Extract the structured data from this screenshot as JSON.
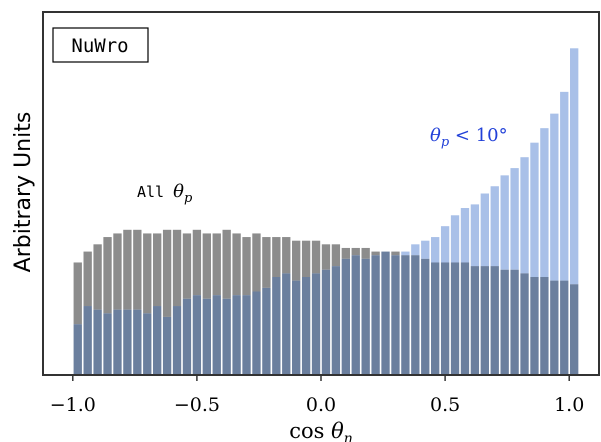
{
  "chart_data": {
    "type": "bar",
    "title": "",
    "xlabel": "cos θ_n",
    "ylabel": "Arbitrary Units",
    "xlim": [
      -1.12,
      1.12
    ],
    "ylim": [
      0,
      1.0
    ],
    "x_ticks": [
      -1.0,
      -0.5,
      0.0,
      0.5,
      1.0
    ],
    "x_tick_labels": [
      "−1.0",
      "−0.5",
      "0.0",
      "0.5",
      "1.0"
    ],
    "legend_box": "NuWro",
    "bin_edges_start": -1.0,
    "bin_width": 0.04,
    "series": [
      {
        "name": "All θ_p",
        "color": "#8c8c8c",
        "values": [
          0.31,
          0.34,
          0.36,
          0.38,
          0.39,
          0.4,
          0.4,
          0.39,
          0.39,
          0.4,
          0.4,
          0.39,
          0.4,
          0.39,
          0.39,
          0.4,
          0.39,
          0.38,
          0.39,
          0.38,
          0.38,
          0.38,
          0.37,
          0.37,
          0.37,
          0.36,
          0.36,
          0.35,
          0.35,
          0.35,
          0.34,
          0.34,
          0.34,
          0.33,
          0.33,
          0.32,
          0.31,
          0.31,
          0.31,
          0.31,
          0.3,
          0.3,
          0.3,
          0.29,
          0.29,
          0.28,
          0.27,
          0.27,
          0.26,
          0.26,
          0.25
        ]
      },
      {
        "name": "θ_p < 10°",
        "color": "#a9c0e8",
        "values": [
          0.14,
          0.19,
          0.18,
          0.17,
          0.18,
          0.18,
          0.18,
          0.17,
          0.19,
          0.16,
          0.19,
          0.21,
          0.22,
          0.21,
          0.22,
          0.21,
          0.22,
          0.22,
          0.23,
          0.24,
          0.27,
          0.28,
          0.26,
          0.27,
          0.28,
          0.29,
          0.3,
          0.32,
          0.33,
          0.32,
          0.33,
          0.34,
          0.33,
          0.34,
          0.36,
          0.37,
          0.38,
          0.41,
          0.44,
          0.46,
          0.47,
          0.5,
          0.52,
          0.55,
          0.57,
          0.6,
          0.64,
          0.68,
          0.72,
          0.78,
          0.9
        ]
      }
    ],
    "annotations": [
      {
        "text_prefix": "All ",
        "text_symbol": "θ",
        "text_sub": "p"
      },
      {
        "text_symbol": "θ",
        "text_sub": "p",
        "text_suffix": " < 10°"
      }
    ],
    "grid": false,
    "overlap_color": "#6b7f9e"
  }
}
